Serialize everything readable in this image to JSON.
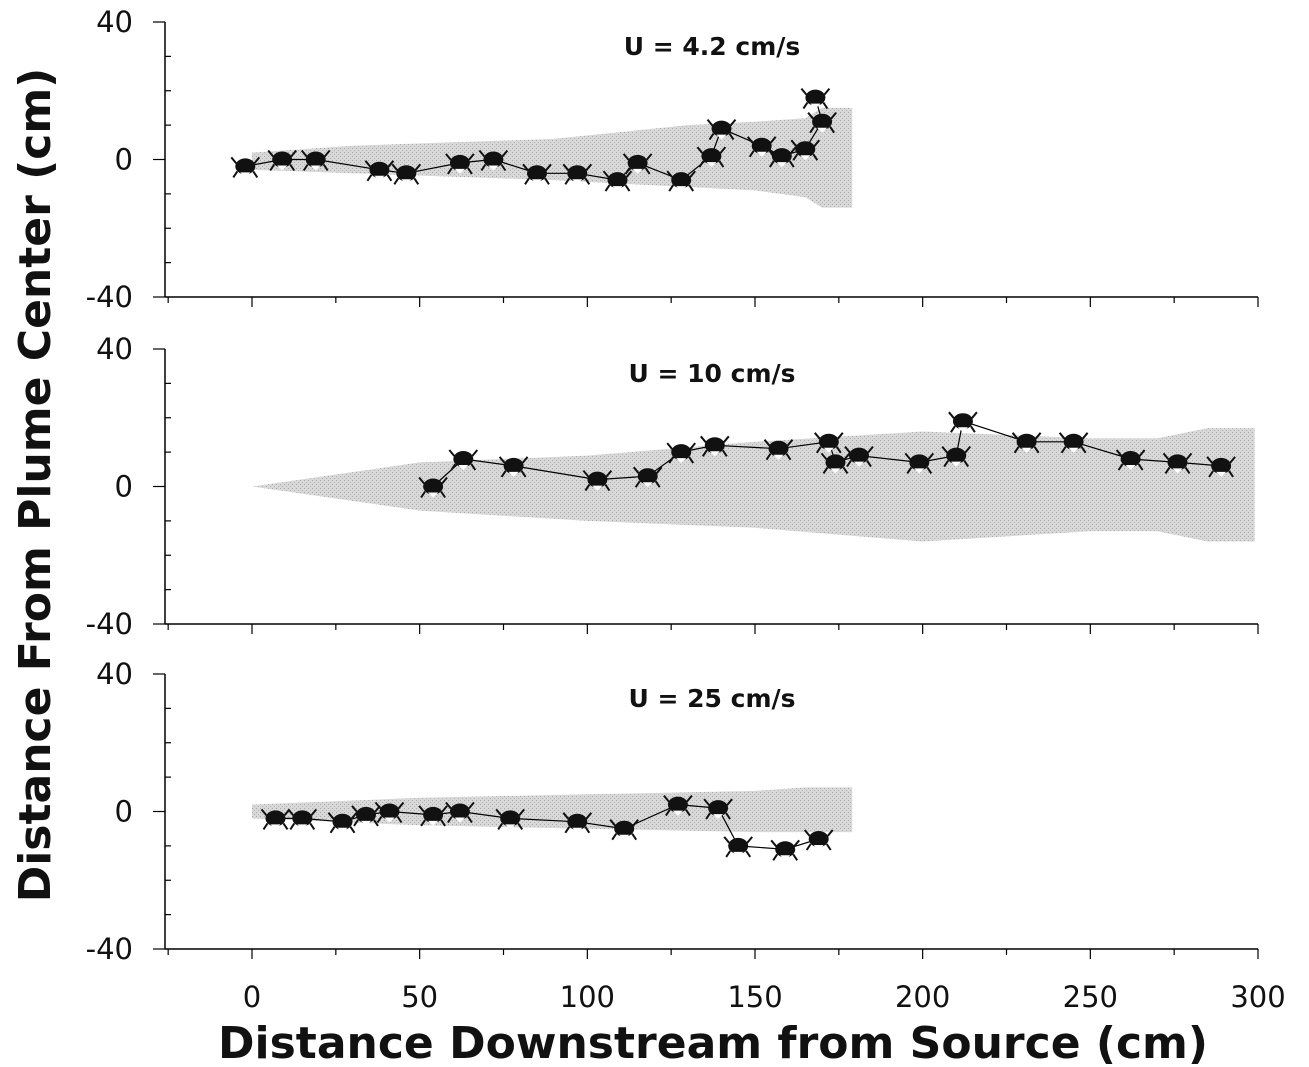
{
  "chart_data": {
    "type": "line",
    "xlabel": "Distance Downstream from Source (cm)",
    "ylabel": "Distance From Plume Center (cm)",
    "xlim": [
      -25,
      300
    ],
    "xticks": [
      0,
      50,
      100,
      150,
      200,
      250,
      300
    ],
    "ylim": [
      -40,
      40
    ],
    "yticks": [
      -40,
      0,
      40
    ],
    "grid": false,
    "colors": {
      "plume": "#d4d4d4",
      "path": "#000000",
      "crab": "#111111",
      "axis": "#000000"
    },
    "panels": [
      {
        "title": "U = 4.2 cm/s",
        "plume_upper": [
          [
            0,
            2
          ],
          [
            30,
            4
          ],
          [
            60,
            5
          ],
          [
            90,
            6
          ],
          [
            110,
            8
          ],
          [
            130,
            10
          ],
          [
            150,
            11
          ],
          [
            165,
            12
          ],
          [
            170,
            15
          ],
          [
            179,
            15
          ]
        ],
        "plume_lower": [
          [
            0,
            -3
          ],
          [
            30,
            -4
          ],
          [
            60,
            -5
          ],
          [
            90,
            -6
          ],
          [
            110,
            -7
          ],
          [
            130,
            -8
          ],
          [
            150,
            -9
          ],
          [
            165,
            -11
          ],
          [
            170,
            -14
          ],
          [
            179,
            -14
          ]
        ],
        "path": [
          [
            -2,
            -2
          ],
          [
            9,
            0
          ],
          [
            19,
            0
          ],
          [
            38,
            -3
          ],
          [
            46,
            -4
          ],
          [
            62,
            -1
          ],
          [
            72,
            0
          ],
          [
            85,
            -4
          ],
          [
            97,
            -4
          ],
          [
            109,
            -6
          ],
          [
            115,
            -1
          ],
          [
            128,
            -6
          ],
          [
            137,
            1
          ],
          [
            140,
            9
          ],
          [
            152,
            4
          ],
          [
            158,
            1
          ],
          [
            165,
            3
          ],
          [
            170,
            11
          ],
          [
            168,
            18
          ]
        ]
      },
      {
        "title": "U = 10 cm/s",
        "plume_upper": [
          [
            0,
            0
          ],
          [
            50,
            7
          ],
          [
            100,
            9
          ],
          [
            150,
            13
          ],
          [
            200,
            16
          ],
          [
            250,
            14
          ],
          [
            270,
            14
          ],
          [
            285,
            17
          ],
          [
            299,
            17
          ]
        ],
        "plume_lower": [
          [
            0,
            0
          ],
          [
            50,
            -7
          ],
          [
            100,
            -10
          ],
          [
            150,
            -12
          ],
          [
            200,
            -16
          ],
          [
            250,
            -13
          ],
          [
            270,
            -13
          ],
          [
            285,
            -16
          ],
          [
            299,
            -16
          ]
        ],
        "path": [
          [
            54,
            0
          ],
          [
            63,
            8
          ],
          [
            78,
            6
          ],
          [
            103,
            2
          ],
          [
            118,
            3
          ],
          [
            128,
            10
          ],
          [
            138,
            12
          ],
          [
            157,
            11
          ],
          [
            172,
            13
          ],
          [
            174,
            7
          ],
          [
            181,
            9
          ],
          [
            199,
            7
          ],
          [
            210,
            9
          ],
          [
            212,
            19
          ],
          [
            231,
            13
          ],
          [
            245,
            13
          ],
          [
            262,
            8
          ],
          [
            276,
            7
          ],
          [
            289,
            6
          ]
        ]
      },
      {
        "title": "U = 25 cm/s",
        "plume_upper": [
          [
            0,
            2
          ],
          [
            50,
            4
          ],
          [
            100,
            5
          ],
          [
            150,
            6
          ],
          [
            165,
            7
          ],
          [
            179,
            7
          ]
        ],
        "plume_lower": [
          [
            0,
            -2
          ],
          [
            50,
            -4
          ],
          [
            100,
            -5
          ],
          [
            150,
            -6
          ],
          [
            165,
            -6
          ],
          [
            179,
            -6
          ]
        ],
        "path": [
          [
            7,
            -2
          ],
          [
            15,
            -2
          ],
          [
            27,
            -3
          ],
          [
            34,
            -1
          ],
          [
            41,
            0
          ],
          [
            54,
            -1
          ],
          [
            62,
            0
          ],
          [
            77,
            -2
          ],
          [
            97,
            -3
          ],
          [
            111,
            -5
          ],
          [
            127,
            2
          ],
          [
            139,
            1
          ],
          [
            145,
            -10
          ],
          [
            159,
            -11
          ],
          [
            169,
            -8
          ]
        ]
      }
    ]
  }
}
